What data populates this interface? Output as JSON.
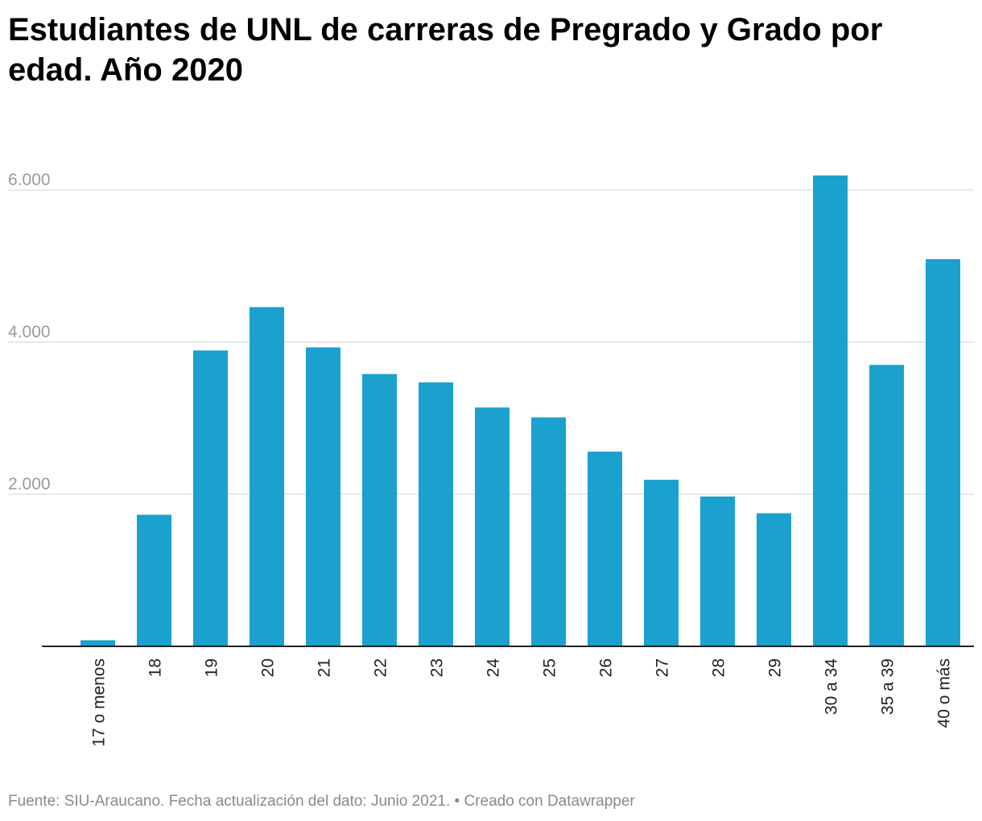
{
  "title": "Estudiantes de UNL de carreras de Pregrado y Grado por edad. Año 2020",
  "footer": {
    "source": "Fuente: SIU-Araucano. Fecha actualización del dato: Junio 2021.",
    "separator": "•",
    "credit": "Creado con Datawrapper"
  },
  "colors": {
    "bar": "#1aa1ce",
    "grid": "#e3e3e3",
    "baseline": "#222222"
  },
  "chart_data": {
    "type": "bar",
    "title": "Estudiantes de UNL de carreras de Pregrado y Grado por edad. Año 2020",
    "xlabel": "",
    "ylabel": "",
    "categories": [
      "17 o menos",
      "18",
      "19",
      "20",
      "21",
      "22",
      "23",
      "24",
      "25",
      "26",
      "27",
      "28",
      "29",
      "30 a 34",
      "35 a 39",
      "40 o más"
    ],
    "values": [
      80,
      1730,
      3890,
      4460,
      3930,
      3580,
      3470,
      3140,
      3010,
      2560,
      2190,
      1970,
      1750,
      6190,
      3700,
      5090
    ],
    "ylim": [
      0,
      6300
    ],
    "yticks": [
      2000,
      4000,
      6000
    ],
    "ytick_labels": [
      "2.000",
      "4.000",
      "6.000"
    ],
    "grid": true,
    "x_label_orientation": "vertical"
  }
}
